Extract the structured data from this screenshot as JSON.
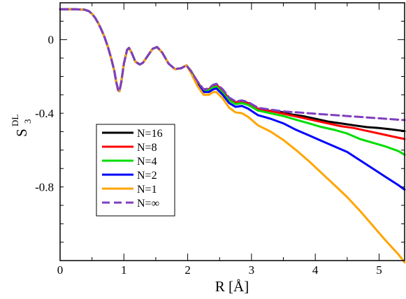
{
  "chart_data": {
    "type": "line",
    "title": "",
    "xlabel": "R [Å]",
    "ylabel": {
      "main": "S",
      "subscript": "3",
      "superscript": "DL"
    },
    "xlim": [
      0,
      5.4
    ],
    "ylim": [
      -1.2,
      0.2
    ],
    "x_ticks": [
      0,
      1,
      2,
      3,
      4,
      5
    ],
    "y_ticks": [
      0,
      -0.4,
      -0.8
    ],
    "x_tick_labels": [
      "0",
      "1",
      "2",
      "3",
      "4",
      "5"
    ],
    "y_tick_labels": [
      "0",
      "-0.4",
      "-0.8"
    ],
    "grid": false,
    "legend_position": "left, middle",
    "shared_curve": [
      [
        0.0,
        0.165
      ],
      [
        0.2,
        0.165
      ],
      [
        0.38,
        0.163
      ],
      [
        0.45,
        0.155
      ],
      [
        0.5,
        0.14
      ],
      [
        0.55,
        0.118
      ],
      [
        0.6,
        0.088
      ],
      [
        0.65,
        0.052
      ],
      [
        0.7,
        0.01
      ],
      [
        0.75,
        -0.04
      ],
      [
        0.8,
        -0.1
      ],
      [
        0.85,
        -0.17
      ],
      [
        0.88,
        -0.23
      ],
      [
        0.91,
        -0.275
      ],
      [
        0.93,
        -0.28
      ],
      [
        0.96,
        -0.23
      ],
      [
        1.0,
        -0.13
      ],
      [
        1.05,
        -0.055
      ],
      [
        1.08,
        -0.045
      ],
      [
        1.12,
        -0.07
      ],
      [
        1.18,
        -0.12
      ],
      [
        1.25,
        -0.135
      ],
      [
        1.3,
        -0.125
      ],
      [
        1.38,
        -0.085
      ],
      [
        1.45,
        -0.05
      ],
      [
        1.52,
        -0.04
      ],
      [
        1.6,
        -0.07
      ],
      [
        1.7,
        -0.13
      ],
      [
        1.8,
        -0.16
      ],
      [
        1.9,
        -0.155
      ],
      [
        1.98,
        -0.14
      ]
    ],
    "series": [
      {
        "name": "N=16",
        "color": "#000000",
        "dash": false,
        "points": [
          [
            2.05,
            -0.17
          ],
          [
            2.15,
            -0.23
          ],
          [
            2.25,
            -0.275
          ],
          [
            2.33,
            -0.27
          ],
          [
            2.4,
            -0.25
          ],
          [
            2.45,
            -0.245
          ],
          [
            2.55,
            -0.28
          ],
          [
            2.65,
            -0.32
          ],
          [
            2.75,
            -0.34
          ],
          [
            2.85,
            -0.335
          ],
          [
            2.95,
            -0.345
          ],
          [
            3.1,
            -0.375
          ],
          [
            3.25,
            -0.385
          ],
          [
            3.4,
            -0.39
          ],
          [
            3.5,
            -0.395
          ],
          [
            3.6,
            -0.405
          ],
          [
            3.8,
            -0.415
          ],
          [
            4.0,
            -0.43
          ],
          [
            4.2,
            -0.445
          ],
          [
            4.4,
            -0.455
          ],
          [
            4.6,
            -0.465
          ],
          [
            4.8,
            -0.475
          ],
          [
            5.0,
            -0.48
          ],
          [
            5.2,
            -0.488
          ],
          [
            5.4,
            -0.497
          ]
        ]
      },
      {
        "name": "N=8",
        "color": "#ff0000",
        "dash": false,
        "points": [
          [
            2.05,
            -0.17
          ],
          [
            2.15,
            -0.23
          ],
          [
            2.25,
            -0.275
          ],
          [
            2.33,
            -0.27
          ],
          [
            2.4,
            -0.25
          ],
          [
            2.45,
            -0.245
          ],
          [
            2.55,
            -0.28
          ],
          [
            2.65,
            -0.32
          ],
          [
            2.75,
            -0.34
          ],
          [
            2.85,
            -0.335
          ],
          [
            2.95,
            -0.345
          ],
          [
            3.1,
            -0.375
          ],
          [
            3.25,
            -0.385
          ],
          [
            3.4,
            -0.395
          ],
          [
            3.6,
            -0.41
          ],
          [
            3.8,
            -0.425
          ],
          [
            4.0,
            -0.44
          ],
          [
            4.2,
            -0.455
          ],
          [
            4.4,
            -0.47
          ],
          [
            4.6,
            -0.48
          ],
          [
            4.8,
            -0.495
          ],
          [
            5.0,
            -0.51
          ],
          [
            5.2,
            -0.525
          ],
          [
            5.4,
            -0.54
          ]
        ]
      },
      {
        "name": "N=4",
        "color": "#00dd00",
        "dash": false,
        "points": [
          [
            2.05,
            -0.17
          ],
          [
            2.15,
            -0.235
          ],
          [
            2.25,
            -0.28
          ],
          [
            2.33,
            -0.275
          ],
          [
            2.4,
            -0.26
          ],
          [
            2.45,
            -0.255
          ],
          [
            2.55,
            -0.29
          ],
          [
            2.65,
            -0.33
          ],
          [
            2.75,
            -0.35
          ],
          [
            2.85,
            -0.345
          ],
          [
            2.95,
            -0.355
          ],
          [
            3.1,
            -0.385
          ],
          [
            3.3,
            -0.4
          ],
          [
            3.5,
            -0.415
          ],
          [
            3.7,
            -0.435
          ],
          [
            3.9,
            -0.455
          ],
          [
            4.1,
            -0.475
          ],
          [
            4.3,
            -0.49
          ],
          [
            4.5,
            -0.51
          ],
          [
            4.7,
            -0.54
          ],
          [
            4.9,
            -0.56
          ],
          [
            5.1,
            -0.58
          ],
          [
            5.3,
            -0.605
          ],
          [
            5.4,
            -0.625
          ]
        ]
      },
      {
        "name": "N=2",
        "color": "#0000ff",
        "dash": false,
        "points": [
          [
            2.05,
            -0.175
          ],
          [
            2.15,
            -0.24
          ],
          [
            2.25,
            -0.285
          ],
          [
            2.33,
            -0.285
          ],
          [
            2.4,
            -0.27
          ],
          [
            2.45,
            -0.265
          ],
          [
            2.55,
            -0.3
          ],
          [
            2.65,
            -0.345
          ],
          [
            2.75,
            -0.365
          ],
          [
            2.85,
            -0.36
          ],
          [
            2.95,
            -0.375
          ],
          [
            3.1,
            -0.41
          ],
          [
            3.3,
            -0.43
          ],
          [
            3.5,
            -0.455
          ],
          [
            3.7,
            -0.49
          ],
          [
            3.9,
            -0.52
          ],
          [
            4.1,
            -0.55
          ],
          [
            4.3,
            -0.58
          ],
          [
            4.5,
            -0.61
          ],
          [
            4.7,
            -0.655
          ],
          [
            4.9,
            -0.7
          ],
          [
            5.1,
            -0.745
          ],
          [
            5.3,
            -0.79
          ],
          [
            5.4,
            -0.815
          ]
        ]
      },
      {
        "name": "N=1",
        "color": "#ffa500",
        "dash": false,
        "points": [
          [
            2.05,
            -0.18
          ],
          [
            2.15,
            -0.25
          ],
          [
            2.25,
            -0.3
          ],
          [
            2.33,
            -0.3
          ],
          [
            2.4,
            -0.285
          ],
          [
            2.45,
            -0.285
          ],
          [
            2.55,
            -0.32
          ],
          [
            2.65,
            -0.37
          ],
          [
            2.75,
            -0.395
          ],
          [
            2.85,
            -0.4
          ],
          [
            2.95,
            -0.42
          ],
          [
            3.1,
            -0.465
          ],
          [
            3.3,
            -0.5
          ],
          [
            3.5,
            -0.545
          ],
          [
            3.7,
            -0.6
          ],
          [
            3.9,
            -0.66
          ],
          [
            4.1,
            -0.725
          ],
          [
            4.3,
            -0.79
          ],
          [
            4.5,
            -0.855
          ],
          [
            4.7,
            -0.93
          ],
          [
            4.9,
            -1.01
          ],
          [
            5.1,
            -1.09
          ],
          [
            5.3,
            -1.165
          ],
          [
            5.4,
            -1.21
          ]
        ]
      },
      {
        "name": "N=∞",
        "color": "#7f3fbf",
        "dash": true,
        "points": [
          [
            2.05,
            -0.17
          ],
          [
            2.15,
            -0.225
          ],
          [
            2.25,
            -0.27
          ],
          [
            2.33,
            -0.265
          ],
          [
            2.4,
            -0.245
          ],
          [
            2.45,
            -0.24
          ],
          [
            2.55,
            -0.27
          ],
          [
            2.65,
            -0.315
          ],
          [
            2.75,
            -0.335
          ],
          [
            2.85,
            -0.33
          ],
          [
            2.95,
            -0.34
          ],
          [
            3.1,
            -0.37
          ],
          [
            3.3,
            -0.38
          ],
          [
            3.5,
            -0.39
          ],
          [
            3.7,
            -0.395
          ],
          [
            3.9,
            -0.4
          ],
          [
            4.1,
            -0.405
          ],
          [
            4.3,
            -0.41
          ],
          [
            4.5,
            -0.415
          ],
          [
            4.7,
            -0.42
          ],
          [
            4.9,
            -0.425
          ],
          [
            5.1,
            -0.43
          ],
          [
            5.3,
            -0.435
          ],
          [
            5.4,
            -0.437
          ]
        ]
      }
    ]
  }
}
